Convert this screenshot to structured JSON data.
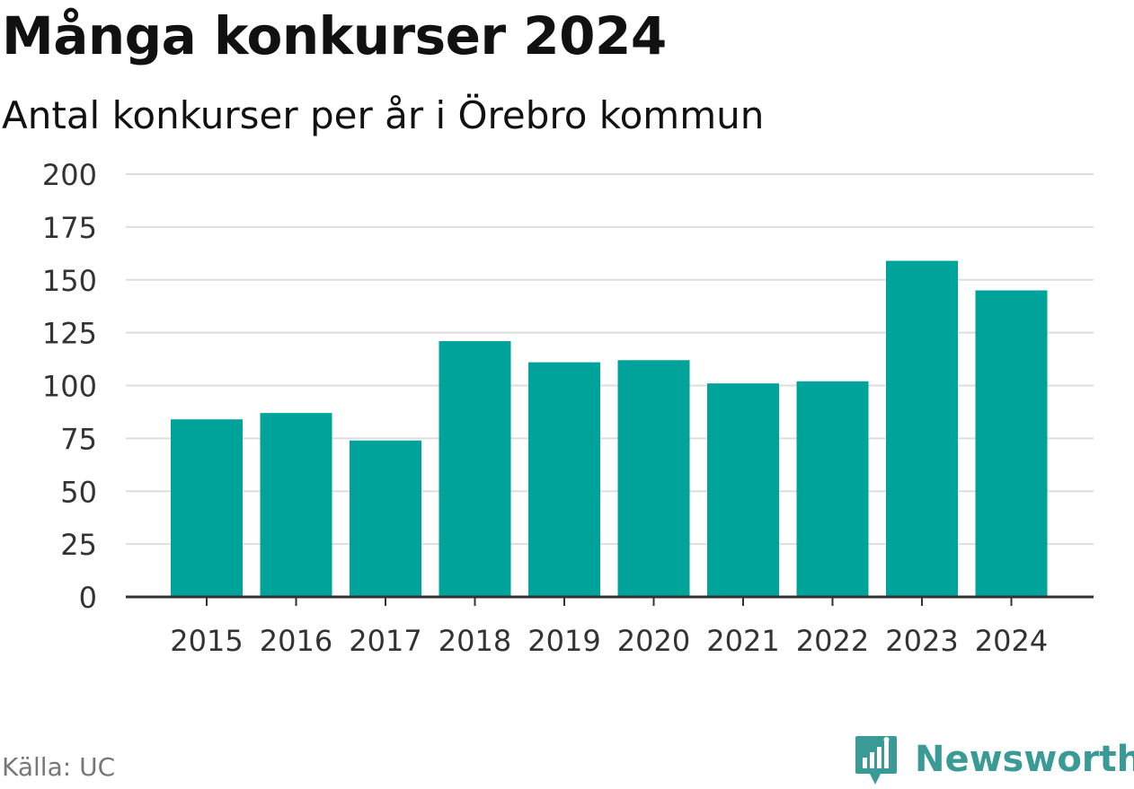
{
  "chart_data": {
    "type": "bar",
    "title": "Många konkurser 2024",
    "subtitle": "Antal konkurser per år i Örebro kommun",
    "categories": [
      "2015",
      "2016",
      "2017",
      "2018",
      "2019",
      "2020",
      "2021",
      "2022",
      "2023",
      "2024"
    ],
    "values": [
      84,
      87,
      74,
      121,
      111,
      112,
      101,
      102,
      159,
      145
    ],
    "ylim": [
      0,
      200
    ],
    "yticks": [
      0,
      25,
      50,
      75,
      100,
      125,
      150,
      175,
      200
    ],
    "xlabel": "",
    "ylabel": "",
    "grid": true,
    "colors": {
      "bar": "#00a39a",
      "grid": "#dddddd",
      "axis": "#333333",
      "tick_text": "#333333"
    }
  },
  "footer": {
    "source": "Källa: UC",
    "brand": "Newsworthy",
    "brand_icon": "newsworthy-logo-icon",
    "brand_color": "#3a9a96"
  }
}
